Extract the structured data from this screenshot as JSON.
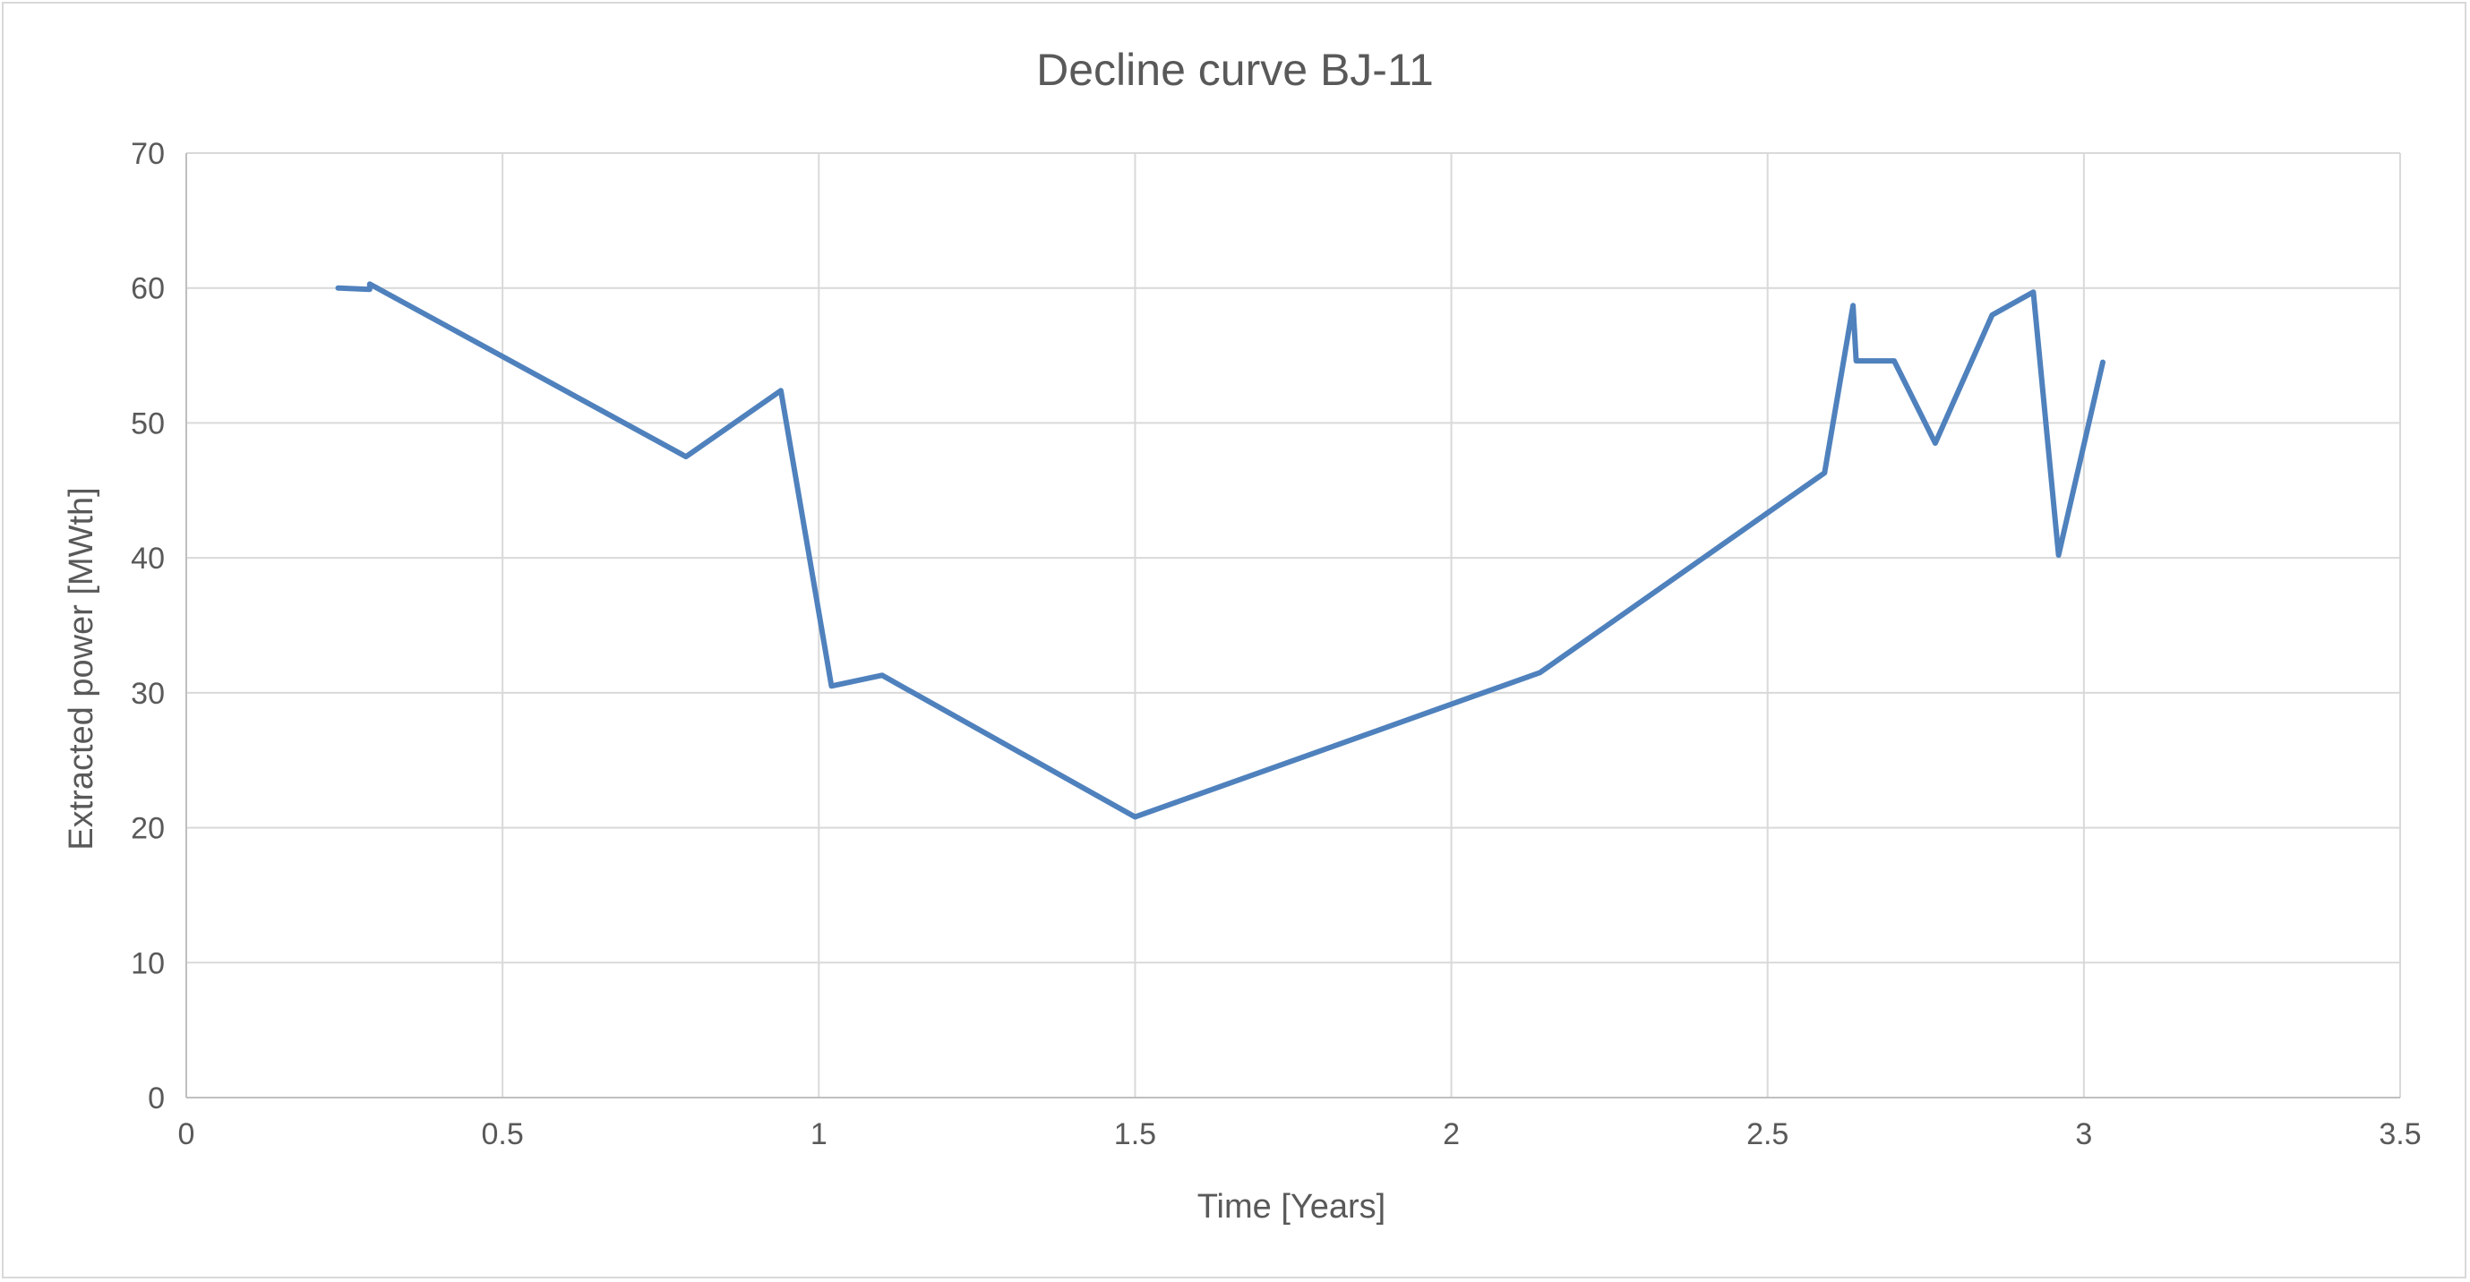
{
  "chart_data": {
    "type": "line",
    "title": "Decline curve BJ-11",
    "xlabel": "Time [Years]",
    "ylabel": "Extracted power [MWth]",
    "xlim": [
      0,
      3.5
    ],
    "ylim": [
      0,
      70
    ],
    "xticks": [
      0,
      0.5,
      1,
      1.5,
      2,
      2.5,
      3,
      3.5
    ],
    "xtick_labels": [
      "0",
      "0.5",
      "1",
      "1.5",
      "2",
      "2.5",
      "3",
      "3.5"
    ],
    "yticks": [
      0,
      10,
      20,
      30,
      40,
      50,
      60,
      70
    ],
    "ytick_labels": [
      "0",
      "10",
      "20",
      "30",
      "40",
      "50",
      "60",
      "70"
    ],
    "grid": true,
    "colors": {
      "series": "#4f81bd"
    },
    "series": [
      {
        "x": [
          0.24,
          0.29,
          0.29,
          0.79,
          0.94,
          1.02,
          1.1,
          1.5,
          2.14,
          2.59,
          2.635,
          2.64,
          2.7,
          2.765,
          2.855,
          2.92,
          2.96,
          3.03
        ],
        "values": [
          60,
          59.9,
          60.3,
          47.5,
          52.4,
          30.5,
          31.3,
          20.8,
          31.5,
          46.3,
          58.7,
          54.6,
          54.6,
          48.5,
          58.0,
          59.7,
          40.2,
          54.5
        ]
      }
    ]
  }
}
